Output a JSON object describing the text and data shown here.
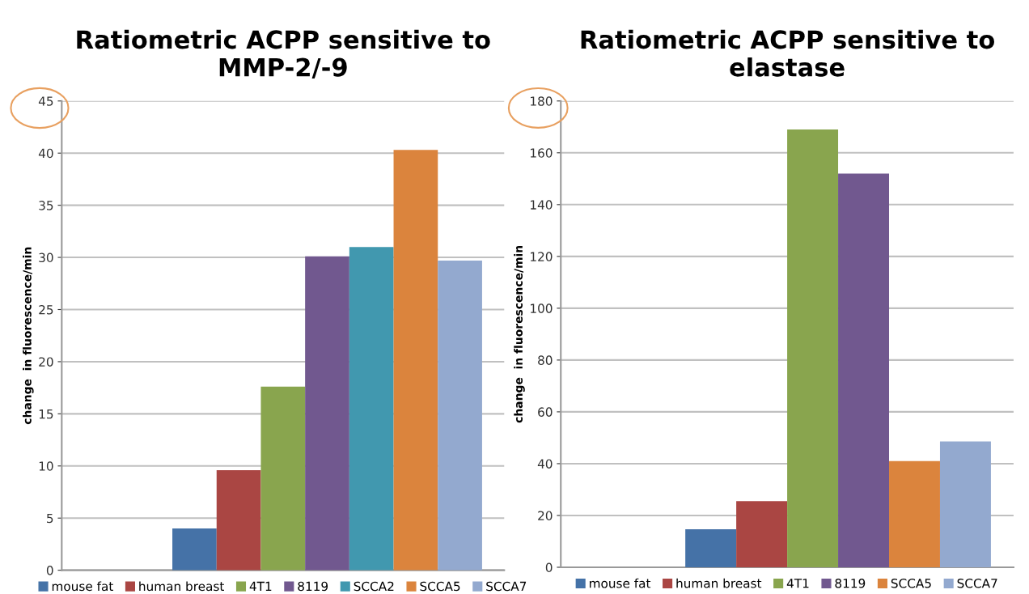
{
  "chart_data": [
    {
      "type": "bar",
      "title": "Ratiometric ACPP sensitive to\nMMP-2/-9",
      "ylabel": "change  in fluorescence/min",
      "categories": [
        null
      ],
      "series": [
        {
          "name": "mouse fat",
          "color": "#4572a7",
          "values": [
            4.0
          ]
        },
        {
          "name": "human breast",
          "color": "#aa4643",
          "values": [
            9.6
          ]
        },
        {
          "name": "4T1",
          "color": "#89a54e",
          "values": [
            17.6
          ]
        },
        {
          "name": "8119",
          "color": "#71588f",
          "values": [
            30.1
          ]
        },
        {
          "name": "SCCA2",
          "color": "#4198af",
          "values": [
            31.0
          ]
        },
        {
          "name": "SCCA5",
          "color": "#db843d",
          "values": [
            40.3
          ]
        },
        {
          "name": "SCCA7",
          "color": "#93a9cf",
          "values": [
            29.7
          ]
        }
      ],
      "ylim": [
        0,
        45
      ],
      "yticks": [
        0,
        5,
        10,
        15,
        20,
        25,
        30,
        35,
        40,
        45
      ],
      "grid": "y",
      "legend": "bottom",
      "tick_labels": "y"
    },
    {
      "type": "bar",
      "title": "Ratiometric ACPP sensitive to\nelastase",
      "ylabel": "change  in fluorescence/min",
      "categories": [
        null
      ],
      "series": [
        {
          "name": "mouse fat",
          "color": "#4572a7",
          "values": [
            14.7
          ]
        },
        {
          "name": "human breast",
          "color": "#aa4643",
          "values": [
            25.5
          ]
        },
        {
          "name": "4T1",
          "color": "#89a54e",
          "values": [
            169
          ]
        },
        {
          "name": "8119",
          "color": "#71588f",
          "values": [
            152
          ]
        },
        {
          "name": "SCCA5",
          "color": "#db843d",
          "values": [
            41
          ]
        },
        {
          "name": "SCCA7",
          "color": "#93a9cf",
          "values": [
            48.6
          ]
        }
      ],
      "ylim": [
        0,
        180
      ],
      "yticks": [
        0,
        20,
        40,
        60,
        80,
        100,
        120,
        140,
        160,
        180
      ],
      "grid": "y",
      "legend": "bottom",
      "tick_labels": "y"
    }
  ]
}
